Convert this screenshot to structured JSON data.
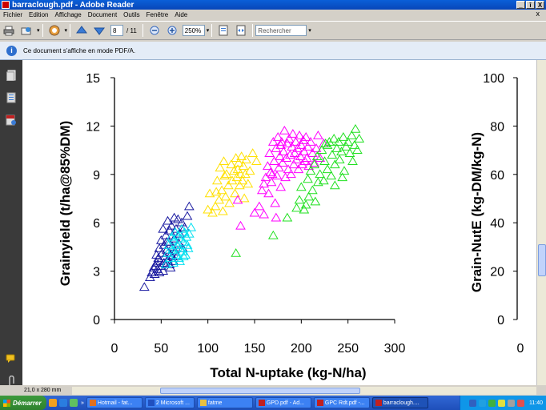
{
  "window": {
    "title": "barraclough.pdf - Adobe Reader",
    "buttons": [
      "_",
      "î",
      "X"
    ],
    "doc_close": "x"
  },
  "menu": [
    "Fichier",
    "Edition",
    "Affichage",
    "Document",
    "Outils",
    "Fenêtre",
    "Aide"
  ],
  "toolbar": {
    "page_current": "8",
    "page_total": "/ 11",
    "zoom": "250%",
    "search_placeholder": "Rechercher"
  },
  "infobar": {
    "message": "Ce document s'affiche en mode PDF/A."
  },
  "status": {
    "page_size": "21,0 x 280 mm"
  },
  "taskbar": {
    "start": "Démarrer",
    "tasks": [
      {
        "label": "Hotmail - fat...",
        "color": "#e07020"
      },
      {
        "label": "2 Microsoft ...",
        "color": "#2050c0"
      },
      {
        "label": "fatme",
        "color": "#e8c040"
      },
      {
        "label": "GPD.pdf - Ad...",
        "color": "#c02020"
      },
      {
        "label": "GPC Rdt.pdf -...",
        "color": "#c02020"
      },
      {
        "label": "barraclough....",
        "color": "#c02020",
        "active": true
      }
    ],
    "clock": "11:40"
  },
  "chart_data": {
    "type": "scatter",
    "xlabel": "Total N-uptake (kg-N/ha)",
    "ylabel": "Grainyield (t/ha@85%DM)",
    "y2label": "Grain-NutE (kg-DM/kg-N)",
    "xlim": [
      0,
      300
    ],
    "ylim": [
      0,
      15
    ],
    "y2lim": [
      0,
      100
    ],
    "x_ticks": [
      "0",
      "50",
      "100",
      "150",
      "200",
      "250",
      "300"
    ],
    "y_ticks": [
      "0",
      "3",
      "6",
      "9",
      "12",
      "15"
    ],
    "y2_ticks": [
      "0",
      "20",
      "40",
      "60",
      "80",
      "100"
    ],
    "right_x_tick": "0",
    "marker": "triangle-open",
    "series": [
      {
        "color": "#1a1aa0",
        "points": [
          [
            32,
            2.0
          ],
          [
            38,
            2.6
          ],
          [
            40,
            2.9
          ],
          [
            42,
            3.2
          ],
          [
            43,
            2.8
          ],
          [
            45,
            3.5
          ],
          [
            45,
            4.0
          ],
          [
            46,
            3.1
          ],
          [
            47,
            3.8
          ],
          [
            48,
            4.4
          ],
          [
            48,
            2.9
          ],
          [
            49,
            3.6
          ],
          [
            50,
            4.9
          ],
          [
            50,
            3.3
          ],
          [
            51,
            4.1
          ],
          [
            52,
            5.6
          ],
          [
            52,
            3.0
          ],
          [
            53,
            4.6
          ],
          [
            54,
            3.9
          ],
          [
            55,
            5.2
          ],
          [
            55,
            3.4
          ],
          [
            56,
            4.3
          ],
          [
            57,
            6.1
          ],
          [
            57,
            3.7
          ],
          [
            58,
            4.8
          ],
          [
            59,
            5.5
          ],
          [
            60,
            4.0
          ],
          [
            60,
            3.2
          ],
          [
            61,
            5.8
          ],
          [
            62,
            4.5
          ],
          [
            63,
            3.6
          ],
          [
            64,
            6.3
          ],
          [
            64,
            5.0
          ],
          [
            65,
            4.2
          ],
          [
            66,
            5.6
          ],
          [
            67,
            3.9
          ],
          [
            68,
            6.2
          ],
          [
            69,
            4.7
          ],
          [
            70,
            5.3
          ],
          [
            72,
            6.0
          ],
          [
            73,
            4.4
          ],
          [
            75,
            5.7
          ],
          [
            78,
            6.4
          ],
          [
            80,
            7.0
          ],
          [
            44,
            3.3
          ],
          [
            47,
            3.0
          ],
          [
            53,
            3.5
          ],
          [
            56,
            4.8
          ],
          [
            59,
            3.4
          ],
          [
            62,
            3.9
          ]
        ]
      },
      {
        "color": "#00e0f0",
        "points": [
          [
            55,
            3.4
          ],
          [
            57,
            4.1
          ],
          [
            58,
            4.6
          ],
          [
            60,
            3.8
          ],
          [
            61,
            5.1
          ],
          [
            62,
            4.3
          ],
          [
            63,
            3.5
          ],
          [
            64,
            4.9
          ],
          [
            65,
            5.4
          ],
          [
            66,
            4.0
          ],
          [
            67,
            4.6
          ],
          [
            68,
            5.2
          ],
          [
            69,
            3.8
          ],
          [
            70,
            4.4
          ],
          [
            71,
            5.0
          ],
          [
            72,
            5.6
          ],
          [
            73,
            4.2
          ],
          [
            74,
            4.8
          ],
          [
            75,
            5.4
          ],
          [
            76,
            4.0
          ],
          [
            77,
            5.1
          ],
          [
            78,
            4.6
          ],
          [
            80,
            5.3
          ],
          [
            82,
            5.7
          ],
          [
            70,
            3.6
          ],
          [
            66,
            4.4
          ],
          [
            74,
            3.9
          ],
          [
            79,
            4.4
          ]
        ]
      },
      {
        "color": "#ffe000",
        "points": [
          [
            100,
            6.8
          ],
          [
            105,
            6.6
          ],
          [
            108,
            7.0
          ],
          [
            110,
            8.6
          ],
          [
            112,
            7.4
          ],
          [
            113,
            9.4
          ],
          [
            115,
            8.0
          ],
          [
            116,
            6.7
          ],
          [
            118,
            8.9
          ],
          [
            119,
            7.6
          ],
          [
            120,
            9.0
          ],
          [
            122,
            8.3
          ],
          [
            123,
            7.2
          ],
          [
            125,
            9.6
          ],
          [
            126,
            8.6
          ],
          [
            128,
            9.2
          ],
          [
            129,
            7.8
          ],
          [
            130,
            10.0
          ],
          [
            131,
            8.8
          ],
          [
            132,
            9.3
          ],
          [
            133,
            9.7
          ],
          [
            134,
            8.3
          ],
          [
            135,
            9.0
          ],
          [
            136,
            10.1
          ],
          [
            137,
            8.6
          ],
          [
            138,
            9.5
          ],
          [
            139,
            7.5
          ],
          [
            140,
            9.0
          ],
          [
            141,
            9.9
          ],
          [
            143,
            8.4
          ],
          [
            145,
            9.2
          ],
          [
            148,
            10.3
          ],
          [
            152,
            9.8
          ],
          [
            102,
            7.8
          ],
          [
            109,
            7.9
          ],
          [
            117,
            9.8
          ]
        ]
      },
      {
        "color": "#ff00ff",
        "points": [
          [
            132,
            7.4
          ],
          [
            135,
            5.8
          ],
          [
            150,
            6.6
          ],
          [
            155,
            7.0
          ],
          [
            158,
            8.0
          ],
          [
            160,
            6.5
          ],
          [
            162,
            8.8
          ],
          [
            164,
            9.5
          ],
          [
            165,
            7.8
          ],
          [
            166,
            10.3
          ],
          [
            168,
            8.5
          ],
          [
            169,
            9.0
          ],
          [
            170,
            11.0
          ],
          [
            171,
            9.8
          ],
          [
            172,
            7.2
          ],
          [
            173,
            10.6
          ],
          [
            174,
            8.9
          ],
          [
            175,
            11.3
          ],
          [
            176,
            9.4
          ],
          [
            177,
            10.1
          ],
          [
            178,
            8.2
          ],
          [
            179,
            11.0
          ],
          [
            180,
            9.7
          ],
          [
            181,
            10.4
          ],
          [
            182,
            11.7
          ],
          [
            183,
            8.8
          ],
          [
            184,
            10.0
          ],
          [
            185,
            10.9
          ],
          [
            186,
            9.3
          ],
          [
            187,
            11.2
          ],
          [
            188,
            10.2
          ],
          [
            189,
            9.0
          ],
          [
            190,
            10.7
          ],
          [
            191,
            11.5
          ],
          [
            192,
            9.6
          ],
          [
            193,
            10.3
          ],
          [
            194,
            11.0
          ],
          [
            195,
            9.9
          ],
          [
            196,
            10.6
          ],
          [
            197,
            9.3
          ],
          [
            198,
            11.4
          ],
          [
            199,
            10.1
          ],
          [
            200,
            10.8
          ],
          [
            201,
            9.6
          ],
          [
            202,
            11.1
          ],
          [
            203,
            10.4
          ],
          [
            204,
            9.8
          ],
          [
            205,
            11.3
          ],
          [
            206,
            10.0
          ],
          [
            207,
            10.7
          ],
          [
            208,
            9.5
          ],
          [
            210,
            11.0
          ],
          [
            212,
            10.3
          ],
          [
            214,
            9.7
          ],
          [
            216,
            10.6
          ],
          [
            218,
            11.4
          ],
          [
            220,
            10.0
          ],
          [
            224,
            10.9
          ],
          [
            160,
            8.4
          ],
          [
            167,
            9.1
          ],
          [
            173,
            6.3
          ],
          [
            178,
            10.8
          ]
        ]
      },
      {
        "color": "#20e020",
        "points": [
          [
            130,
            4.1
          ],
          [
            170,
            5.2
          ],
          [
            185,
            6.3
          ],
          [
            195,
            6.9
          ],
          [
            198,
            7.4
          ],
          [
            200,
            8.2
          ],
          [
            203,
            6.8
          ],
          [
            205,
            7.1
          ],
          [
            207,
            8.7
          ],
          [
            208,
            7.6
          ],
          [
            210,
            9.2
          ],
          [
            212,
            8.0
          ],
          [
            214,
            9.6
          ],
          [
            215,
            7.3
          ],
          [
            217,
            10.1
          ],
          [
            218,
            8.5
          ],
          [
            220,
            9.0
          ],
          [
            222,
            10.5
          ],
          [
            224,
            8.6
          ],
          [
            225,
            9.8
          ],
          [
            226,
            10.9
          ],
          [
            228,
            9.3
          ],
          [
            230,
            11.0
          ],
          [
            232,
            8.9
          ],
          [
            233,
            10.2
          ],
          [
            235,
            11.2
          ],
          [
            236,
            9.6
          ],
          [
            238,
            10.6
          ],
          [
            240,
            11.0
          ],
          [
            241,
            9.9
          ],
          [
            243,
            10.4
          ],
          [
            245,
            11.3
          ],
          [
            246,
            9.2
          ],
          [
            248,
            10.7
          ],
          [
            250,
            11.0
          ],
          [
            252,
            10.3
          ],
          [
            254,
            11.4
          ],
          [
            255,
            9.8
          ],
          [
            257,
            10.8
          ],
          [
            258,
            11.8
          ],
          [
            260,
            10.5
          ],
          [
            262,
            11.2
          ],
          [
            244,
            8.8
          ],
          [
            236,
            8.3
          ],
          [
            228,
            10.8
          ]
        ]
      }
    ]
  }
}
